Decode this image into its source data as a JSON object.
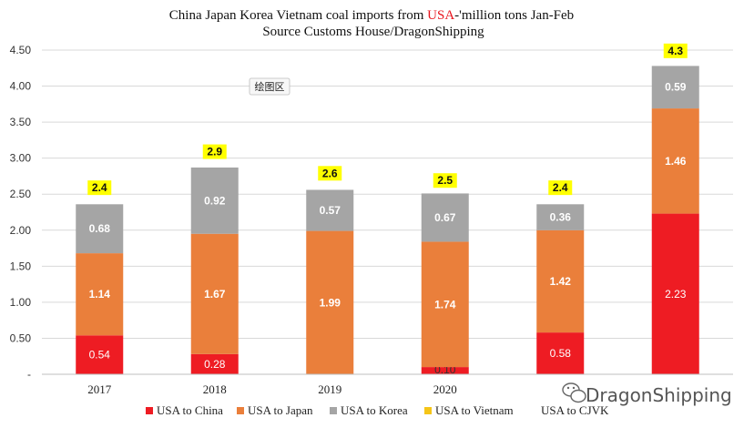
{
  "chart_data": {
    "type": "bar",
    "stacked": true,
    "title": [
      "China Japan Korea Vietnam coal imports from ",
      "USA",
      "-'million tons Jan-Feb"
    ],
    "subtitle": "Source Customs House/DragonShipping",
    "categories": [
      "2017",
      "2018",
      "2019",
      "2020",
      "",
      ""
    ],
    "ylim": [
      0,
      4.5
    ],
    "yticks": [
      "-",
      "0.50",
      "1.00",
      "1.50",
      "2.00",
      "2.50",
      "3.00",
      "3.50",
      "4.00",
      "4.50"
    ],
    "ytick_values": [
      0,
      0.5,
      1.0,
      1.5,
      2.0,
      2.5,
      3.0,
      3.5,
      4.0,
      4.5
    ],
    "grid": true,
    "legend_position": "bottom",
    "series": [
      {
        "name": "USA to China",
        "color": "#ee1c23",
        "values": [
          0.54,
          0.28,
          0,
          0.1,
          0.58,
          2.23
        ],
        "labels": [
          "0.54",
          "0.28",
          "",
          "0.10",
          "0.58",
          "2.23"
        ]
      },
      {
        "name": "USA to Japan",
        "color": "#ea7f3b",
        "values": [
          1.14,
          1.67,
          1.99,
          1.74,
          1.42,
          1.46
        ],
        "labels": [
          "1.14",
          "1.67",
          "1.99",
          "1.74",
          "1.42",
          "1.46"
        ]
      },
      {
        "name": "USA to Korea",
        "color": "#a5a5a5",
        "values": [
          0.68,
          0.92,
          0.57,
          0.67,
          0.36,
          0.59
        ],
        "labels": [
          "0.68",
          "0.92",
          "0.57",
          "0.67",
          "0.36",
          "0.59"
        ]
      },
      {
        "name": "USA to Vietnam",
        "color": "#f5c518",
        "values": [
          0,
          0,
          0,
          0,
          0,
          0
        ],
        "labels": [
          "",
          "",
          "",
          "",
          "",
          ""
        ]
      }
    ],
    "totals": [
      2.4,
      2.9,
      2.6,
      2.5,
      2.4,
      4.3
    ],
    "totals_labels": [
      "2.4",
      "2.9",
      "2.6",
      "2.5",
      "2.4",
      "4.3"
    ],
    "total_series_name": "USA to CJVK",
    "total_label_bg": "#ffff00"
  },
  "tooltip_text": "绘图区",
  "watermark": "DragonShipping"
}
